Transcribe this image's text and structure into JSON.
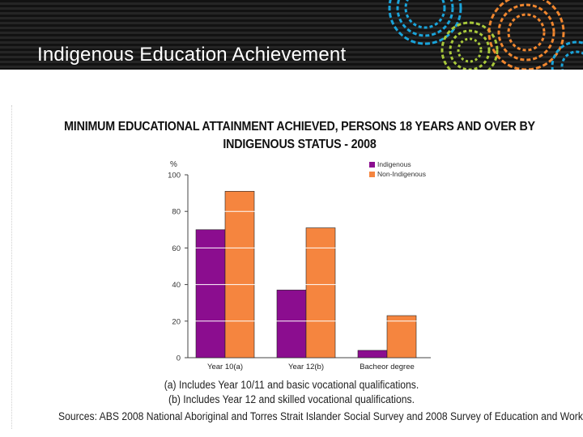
{
  "slide": {
    "title": "Indigenous Education Achievement"
  },
  "chart_data": {
    "type": "bar",
    "title_line1": "MINIMUM EDUCATIONAL ATTAINMENT ACHIEVED, PERSONS 18 YEARS AND OVER BY",
    "title_line2": "INDIGENOUS STATUS - 2008",
    "ylabel": "%",
    "xlabel": "",
    "ylim": [
      0,
      100
    ],
    "yticks": [
      0,
      20,
      40,
      60,
      80,
      100
    ],
    "categories": [
      "Year 10(a)",
      "Year 12(b)",
      "Bacheor degree"
    ],
    "series": [
      {
        "name": "Indigenous",
        "color": "#8b0d8f",
        "values": [
          70,
          37,
          4
        ]
      },
      {
        "name": "Non-Indigenous",
        "color": "#f5853f",
        "values": [
          91,
          71,
          23
        ]
      }
    ],
    "legend_position": "top-right",
    "grid": false
  },
  "footnotes": {
    "a": "(a) Includes Year 10/11 and basic vocational qualifications.",
    "b": "(b) Includes Year 12 and skilled vocational qualifications.",
    "source": "Sources: ABS 2008 National Aboriginal and Torres Strait Islander Social Survey and 2008 Survey of Education and Work"
  },
  "colors": {
    "header_bg": "#1a1a1a",
    "axis": "#333333"
  },
  "decoration": {
    "rings_icon": "colorful-rings-icon"
  }
}
